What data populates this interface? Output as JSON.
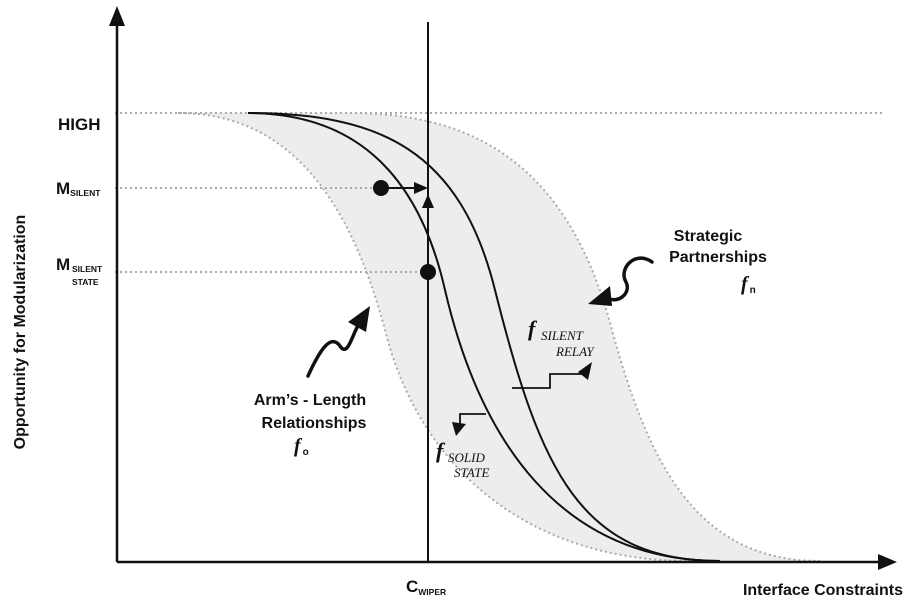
{
  "axes": {
    "x_label": "Interface Constraints",
    "y_label": "Opportunity for Modularization",
    "c_wiper": {
      "main": "C",
      "sub": "WIPER"
    },
    "y_ticks": {
      "high": "HIGH",
      "m_silent": {
        "main": "M",
        "sub": "SILENT"
      },
      "m_silent_state": {
        "main": "M",
        "sub1": "SILENT",
        "sub2": "STATE"
      }
    }
  },
  "annotations": {
    "strategic": {
      "line1": "Strategic",
      "line2": "Partnerships",
      "f": "f",
      "sub": "n"
    },
    "arms_length": {
      "line1": "Arm’s - Length",
      "line2": "Relationships",
      "f": "f",
      "sub": "o"
    },
    "silent_relay": {
      "f": "f",
      "sub1": "SILENT",
      "sub2": "RELAY"
    },
    "solid_state": {
      "f": "f",
      "sub1": "SOLID",
      "sub2": "STATE"
    }
  },
  "colors": {
    "ink": "#111111",
    "band_fill": "#ededed",
    "dotted": "#aaaaaa"
  }
}
